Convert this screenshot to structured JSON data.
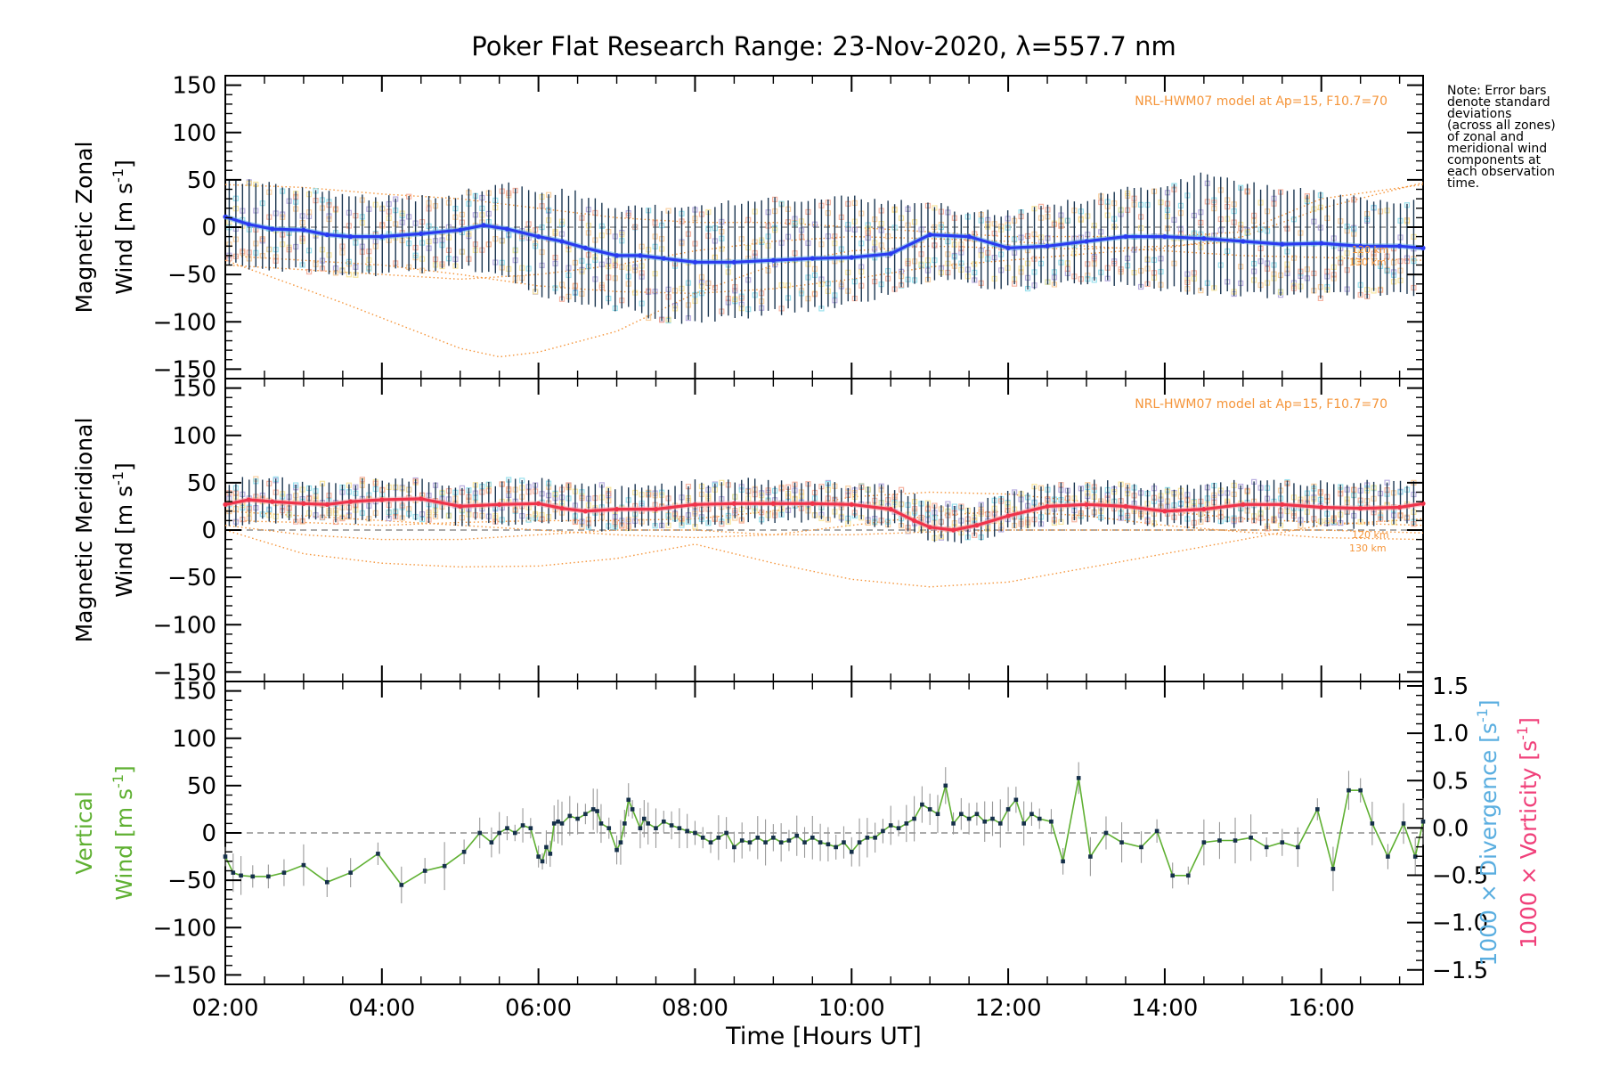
{
  "colors": {
    "zonal_mean": "#2a3bf0",
    "zonal_mean_light": "#5aa8ea",
    "meridional_mean": "#f0334a",
    "vertical_line": "#5fb032",
    "divergence_label": "#5aaee0",
    "vorticity_label": "#f0407a",
    "model": "#f5953a",
    "zone_purple": "#a89ad8",
    "zone_peach": "#f8c48a",
    "zone_cyan": "#7fd8e8",
    "zone_yellow": "#f6e08a",
    "zone_salmon": "#f3a08a",
    "error_bar": "#1a3550"
  },
  "figure": {
    "title": "Poker Flat Research Range: 23-Nov-2020, λ=557.7 nm",
    "xlabel": "Time [Hours UT]",
    "xticks": [
      "02:00",
      "04:00",
      "06:00",
      "08:00",
      "10:00",
      "12:00",
      "14:00",
      "16:00"
    ],
    "yticks": [
      "150",
      "100",
      "50",
      "0",
      "−50",
      "−100",
      "−150"
    ],
    "right_yticks": [
      "1.5",
      "1.0",
      "0.5",
      "0.0",
      "−0.5",
      "−1.0",
      "−1.5"
    ],
    "note": [
      "Note: Error bars",
      "denote standard",
      "deviations",
      "(across all zones)",
      "of zonal and",
      "meridional wind",
      "components at",
      "each observation",
      "time."
    ]
  },
  "panels": {
    "zonal": {
      "ylabel_line1": "Magnetic Zonal",
      "ylabel_line2": "Wind [m s",
      "ylabel_sup": "-1",
      "ylabel_close": "]",
      "model_label": "NRL-HWM07 model at Ap=15, F10.7=70",
      "model_km": [
        "120 km",
        "130 km"
      ]
    },
    "meridional": {
      "ylabel_line1": "Magnetic Meridional",
      "ylabel_line2": "Wind [m s",
      "ylabel_sup": "-1",
      "ylabel_close": "]",
      "model_label": "NRL-HWM07 model at Ap=15, F10.7=70",
      "model_km": [
        "120 km",
        "130 km"
      ]
    },
    "vertical": {
      "ylabel_line1": "Vertical",
      "ylabel_line2": "Wind [m s",
      "ylabel_sup": "-1",
      "ylabel_close": "]",
      "right_label_div": "1000 × Divergence [s",
      "right_label_vort": "1000 × Vorticity [s",
      "right_sup": "-1",
      "right_close": "]"
    }
  },
  "chart_data": [
    {
      "type": "line",
      "title": "Poker Flat Research Range: 23-Nov-2020, λ=557.7 nm",
      "ylabel": "Magnetic Zonal Wind [m s-1]",
      "xlim": [
        2.0,
        17.3
      ],
      "ylim": [
        -160,
        160
      ],
      "series": [
        {
          "x": [
            2.0,
            2.3,
            2.6,
            3.0,
            3.3,
            3.6,
            4.0,
            4.5,
            5.0,
            5.3,
            5.6,
            6.0,
            6.3,
            6.6,
            7.0,
            7.3,
            7.6,
            8.0,
            8.5,
            9.0,
            9.5,
            10.0,
            10.5,
            11.0,
            11.5,
            12.0,
            12.5,
            13.0,
            13.5,
            14.0,
            14.5,
            15.0,
            15.5,
            16.0,
            16.5,
            17.0,
            17.3
          ],
          "y": [
            11,
            3,
            -2,
            -3,
            -8,
            -10,
            -10,
            -7,
            -3,
            2,
            -2,
            -10,
            -15,
            -22,
            -30,
            -30,
            -33,
            -37,
            -37,
            -35,
            -33,
            -32,
            -28,
            -8,
            -10,
            -22,
            -20,
            -15,
            -10,
            -10,
            -12,
            -15,
            -18,
            -17,
            -20,
            -20,
            -22
          ]
        }
      ],
      "ranges": {
        "x": [
          2.0,
          2.5,
          3.0,
          3.5,
          4.0,
          4.5,
          5.0,
          5.5,
          6.0,
          6.5,
          7.0,
          7.5,
          8.0,
          8.5,
          9.0,
          9.5,
          10.0,
          10.5,
          11.0,
          11.5,
          12.0,
          12.5,
          13.0,
          13.5,
          14.0,
          14.5,
          15.0,
          15.5,
          16.0,
          16.5,
          17.0
        ],
        "low": [
          -40,
          -42,
          -45,
          -48,
          -48,
          -45,
          -42,
          -50,
          -70,
          -80,
          -85,
          -95,
          -100,
          -95,
          -90,
          -85,
          -80,
          -70,
          -55,
          -60,
          -65,
          -60,
          -60,
          -60,
          -65,
          -70,
          -70,
          -72,
          -72,
          -72,
          -70
        ],
        "high": [
          50,
          45,
          40,
          35,
          30,
          30,
          35,
          45,
          40,
          35,
          20,
          20,
          20,
          25,
          30,
          30,
          30,
          25,
          25,
          15,
          15,
          20,
          30,
          40,
          45,
          55,
          45,
          40,
          35,
          30,
          25
        ]
      },
      "model_curves": [
        {
          "x": [
            2.0,
            3.5,
            5.0,
            5.5,
            6.0,
            7.0,
            8.0,
            9.0,
            10.0,
            11.0,
            12.0,
            13.0,
            14.0,
            15.0,
            16.0,
            17.3
          ],
          "y": [
            -35,
            -80,
            -128,
            -137,
            -132,
            -110,
            -70,
            -40,
            -25,
            -20,
            -22,
            -23,
            -20,
            -15,
            -18,
            -22
          ]
        },
        {
          "x": [
            2.0,
            3.0,
            4.0,
            5.0,
            6.0,
            7.0,
            8.0,
            9.0,
            10.0,
            11.0,
            12.0,
            13.0,
            14.0,
            15.0,
            16.0,
            17.3
          ],
          "y": [
            -30,
            -35,
            -40,
            -50,
            -62,
            -68,
            -70,
            -65,
            -55,
            -42,
            -35,
            -28,
            -22,
            -10,
            20,
            47
          ]
        },
        {
          "x": [
            2.0,
            3.0,
            4.0,
            5.0,
            6.0,
            7.0,
            8.0,
            9.0,
            10.0,
            11.0,
            12.0,
            13.0,
            14.0,
            15.0,
            16.0,
            17.3
          ],
          "y": [
            -40,
            -45,
            -50,
            -55,
            -50,
            -40,
            -25,
            -15,
            -10,
            -12,
            -15,
            -20,
            -25,
            -30,
            -32,
            -35
          ]
        },
        {
          "x": [
            2.0,
            3.0,
            4.0,
            5.0,
            6.0,
            7.0,
            8.0,
            9.0,
            10.0,
            11.0,
            12.0,
            13.0,
            14.0,
            15.0,
            16.0,
            17.3
          ],
          "y": [
            45,
            42,
            35,
            30,
            20,
            10,
            5,
            5,
            0,
            -5,
            -10,
            -10,
            -10,
            -5,
            30,
            45
          ]
        }
      ]
    },
    {
      "type": "line",
      "ylabel": "Magnetic Meridional Wind [m s-1]",
      "xlim": [
        2.0,
        17.3
      ],
      "ylim": [
        -160,
        160
      ],
      "series": [
        {
          "x": [
            2.0,
            2.3,
            2.6,
            3.0,
            3.3,
            3.6,
            4.0,
            4.5,
            5.0,
            5.5,
            6.0,
            6.3,
            6.6,
            7.0,
            7.5,
            8.0,
            8.5,
            9.0,
            9.5,
            10.0,
            10.5,
            10.8,
            11.0,
            11.3,
            11.6,
            12.0,
            12.5,
            13.0,
            13.5,
            14.0,
            14.5,
            15.0,
            15.5,
            16.0,
            16.5,
            17.0,
            17.3
          ],
          "y": [
            27,
            32,
            30,
            28,
            27,
            30,
            32,
            33,
            25,
            27,
            28,
            23,
            20,
            22,
            22,
            27,
            28,
            28,
            28,
            27,
            22,
            10,
            3,
            0,
            5,
            15,
            25,
            27,
            25,
            20,
            22,
            27,
            27,
            24,
            23,
            24,
            28
          ]
        }
      ],
      "ranges": {
        "x": [
          2.0,
          2.5,
          3.0,
          3.5,
          4.0,
          4.5,
          5.0,
          5.5,
          6.0,
          6.5,
          7.0,
          7.5,
          8.0,
          8.5,
          9.0,
          9.5,
          10.0,
          10.5,
          11.0,
          11.5,
          12.0,
          12.5,
          13.0,
          13.5,
          14.0,
          14.5,
          15.0,
          15.5,
          16.0,
          16.5,
          17.0
        ],
        "low": [
          5,
          10,
          10,
          10,
          10,
          12,
          8,
          8,
          10,
          5,
          0,
          5,
          5,
          10,
          10,
          10,
          10,
          5,
          -10,
          -12,
          0,
          5,
          10,
          8,
          5,
          5,
          5,
          5,
          5,
          5,
          8
        ],
        "high": [
          50,
          55,
          50,
          50,
          52,
          52,
          45,
          50,
          52,
          50,
          45,
          45,
          50,
          52,
          50,
          48,
          48,
          45,
          30,
          25,
          40,
          45,
          50,
          48,
          45,
          48,
          50,
          50,
          50,
          50,
          50
        ]
      },
      "model_curves": [
        {
          "x": [
            2.0,
            3.0,
            4.0,
            5.0,
            6.0,
            7.0,
            8.0,
            9.0,
            10.0,
            11.0,
            12.0,
            13.0,
            14.0,
            15.0,
            16.0,
            17.3
          ],
          "y": [
            0,
            -25,
            -35,
            -39,
            -38,
            -30,
            -15,
            -35,
            -52,
            -60,
            -55,
            -40,
            -25,
            -10,
            5,
            12
          ]
        },
        {
          "x": [
            2.0,
            3.0,
            4.0,
            5.0,
            6.0,
            7.0,
            8.0,
            9.0,
            10.0,
            11.0,
            12.0,
            13.0,
            14.0,
            15.0,
            16.0,
            17.3
          ],
          "y": [
            5,
            -5,
            -10,
            -10,
            -5,
            0,
            0,
            -5,
            -5,
            -2,
            0,
            0,
            0,
            0,
            0,
            -3
          ]
        },
        {
          "x": [
            2.0,
            3.0,
            4.0,
            5.0,
            6.0,
            7.0,
            8.0,
            9.0,
            10.0,
            11.0,
            12.0,
            13.0,
            14.0,
            15.0,
            16.0,
            17.3
          ],
          "y": [
            10,
            8,
            5,
            8,
            10,
            10,
            12,
            20,
            35,
            40,
            38,
            30,
            20,
            12,
            8,
            5
          ]
        },
        {
          "x": [
            2.0,
            3.0,
            4.0,
            5.0,
            6.0,
            7.0,
            8.0,
            9.0,
            10.0,
            11.0,
            12.0,
            13.0,
            14.0,
            15.0,
            16.0,
            17.3
          ],
          "y": [
            20,
            15,
            10,
            5,
            0,
            -5,
            -8,
            -5,
            5,
            15,
            20,
            15,
            5,
            -2,
            -8,
            -10
          ]
        }
      ]
    },
    {
      "type": "line",
      "ylabel": "Vertical Wind [m s-1]",
      "xlabel": "Time [Hours UT]",
      "xlim": [
        2.0,
        17.3
      ],
      "ylim": [
        -160,
        160
      ],
      "y2lim": [
        -1.5,
        1.5
      ],
      "y2label": "1000 × Divergence [s-1] / 1000 × Vorticity [s-1]",
      "series": [
        {
          "x": [
            2.0,
            2.1,
            2.2,
            2.35,
            2.55,
            2.75,
            3.0,
            3.3,
            3.6,
            3.95,
            4.25,
            4.55,
            4.8,
            5.05,
            5.25,
            5.4,
            5.5,
            5.6,
            5.7,
            5.8,
            5.9,
            6.0,
            6.05,
            6.1,
            6.15,
            6.2,
            6.25,
            6.3,
            6.4,
            6.5,
            6.6,
            6.7,
            6.75,
            6.8,
            6.9,
            7.0,
            7.05,
            7.1,
            7.15,
            7.2,
            7.3,
            7.35,
            7.4,
            7.5,
            7.6,
            7.7,
            7.8,
            7.9,
            8.0,
            8.1,
            8.2,
            8.3,
            8.4,
            8.5,
            8.6,
            8.7,
            8.8,
            8.9,
            9.0,
            9.1,
            9.2,
            9.3,
            9.4,
            9.5,
            9.6,
            9.7,
            9.8,
            9.9,
            10.0,
            10.1,
            10.2,
            10.3,
            10.4,
            10.5,
            10.6,
            10.7,
            10.8,
            10.9,
            11.0,
            11.1,
            11.2,
            11.3,
            11.4,
            11.5,
            11.6,
            11.7,
            11.8,
            11.9,
            12.0,
            12.1,
            12.2,
            12.3,
            12.4,
            12.55,
            12.7,
            12.9,
            13.05,
            13.25,
            13.45,
            13.7,
            13.9,
            14.1,
            14.3,
            14.5,
            14.7,
            14.9,
            15.1,
            15.3,
            15.5,
            15.7,
            15.95,
            16.15,
            16.35,
            16.5,
            16.65,
            16.85,
            17.05,
            17.2,
            17.3
          ],
          "y": [
            -25,
            -42,
            -45,
            -46,
            -46,
            -42,
            -34,
            -52,
            -42,
            -22,
            -55,
            -40,
            -35,
            -20,
            0,
            -10,
            0,
            5,
            0,
            8,
            5,
            -25,
            -30,
            -15,
            -22,
            10,
            12,
            10,
            18,
            15,
            20,
            25,
            23,
            10,
            5,
            -18,
            -10,
            10,
            35,
            25,
            5,
            15,
            10,
            5,
            12,
            8,
            5,
            2,
            0,
            -5,
            -10,
            -5,
            0,
            -15,
            -8,
            -10,
            -5,
            -10,
            -5,
            -10,
            -8,
            -3,
            -10,
            -5,
            -10,
            -12,
            -15,
            -10,
            -20,
            -10,
            -5,
            -5,
            2,
            8,
            5,
            10,
            15,
            30,
            25,
            20,
            50,
            10,
            20,
            15,
            20,
            12,
            15,
            10,
            25,
            35,
            10,
            20,
            15,
            12,
            -30,
            58,
            -25,
            0,
            -10,
            -15,
            2,
            -45,
            -45,
            -10,
            -8,
            -8,
            -5,
            -15,
            -10,
            -15,
            25,
            -38,
            45,
            45,
            10,
            -25,
            10,
            -25,
            12
          ]
        }
      ]
    }
  ]
}
